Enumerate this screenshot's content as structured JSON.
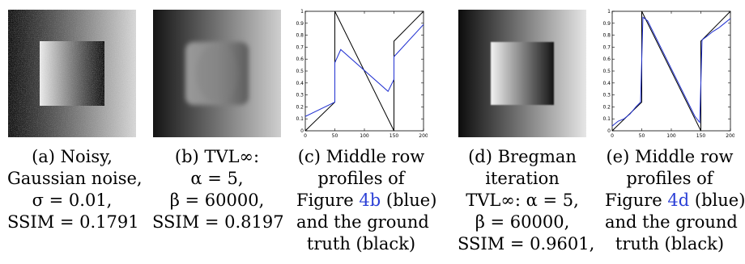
{
  "panels": [
    {
      "caption": [
        "(a) Noisy,",
        "Gaussian noise,",
        "σ = 0.01,",
        "SSIM = 0.1791"
      ]
    },
    {
      "caption": [
        "(b) TVL∞:",
        "α = 5,",
        "β = 60000,",
        "SSIM = 0.8197"
      ]
    },
    {
      "caption_lines": [
        {
          "text": "(c) Middle row"
        },
        {
          "text": "profiles of"
        },
        {
          "pre": "Figure ",
          "link": "4b",
          "post": " (blue)"
        },
        {
          "text": "and the ground"
        },
        {
          "text": "truth (black)"
        }
      ]
    },
    {
      "caption": [
        "(d) Bregman",
        "iteration",
        "TVL∞: α = 5,",
        "β = 60000,",
        "SSIM = 0.9601,"
      ]
    },
    {
      "caption_lines": [
        {
          "text": "(e) Middle row"
        },
        {
          "text": "profiles of"
        },
        {
          "pre": "Figure ",
          "link": "4d",
          "post": " (blue)"
        },
        {
          "text": "and the ground"
        },
        {
          "text": "truth (black)"
        }
      ]
    }
  ],
  "chart_data": [
    {
      "type": "line",
      "title": "",
      "xlim": [
        0,
        200
      ],
      "ylim": [
        0,
        1
      ],
      "xticks": [
        "0",
        "50",
        "100",
        "150",
        "200"
      ],
      "yticks": [
        "0",
        "0.1",
        "0.2",
        "0.3",
        "0.4",
        "0.5",
        "0.6",
        "0.7",
        "0.8",
        "0.9",
        "1"
      ],
      "series": [
        {
          "color": "#000000",
          "x": [
            0,
            50,
            50,
            150,
            150,
            200
          ],
          "y": [
            0,
            0.24,
            1.0,
            0.0,
            0.75,
            1.0
          ]
        },
        {
          "color": "#1f2fd0",
          "x": [
            0,
            50,
            50,
            60,
            140,
            150,
            150,
            200
          ],
          "y": [
            0.12,
            0.24,
            0.57,
            0.68,
            0.33,
            0.43,
            0.62,
            0.89
          ]
        }
      ]
    },
    {
      "type": "line",
      "title": "",
      "xlim": [
        0,
        200
      ],
      "ylim": [
        0,
        1
      ],
      "xticks": [
        "0",
        "50",
        "100",
        "150",
        "200"
      ],
      "yticks": [
        "0",
        "0.1",
        "0.2",
        "0.3",
        "0.4",
        "0.5",
        "0.6",
        "0.7",
        "0.8",
        "0.9",
        "1"
      ],
      "series": [
        {
          "color": "#000000",
          "x": [
            0,
            50,
            50,
            150,
            150,
            200
          ],
          "y": [
            0,
            0.24,
            1.0,
            0.0,
            0.75,
            1.0
          ]
        },
        {
          "color": "#1f2fd0",
          "x": [
            0,
            10,
            20,
            30,
            40,
            48,
            50,
            52,
            60,
            100,
            140,
            148,
            150,
            152,
            160,
            170,
            180,
            190,
            200
          ],
          "y": [
            0.04,
            0.08,
            0.1,
            0.14,
            0.2,
            0.24,
            0.6,
            0.95,
            0.92,
            0.52,
            0.12,
            0.07,
            0.4,
            0.76,
            0.79,
            0.83,
            0.86,
            0.9,
            0.94
          ]
        }
      ]
    }
  ]
}
